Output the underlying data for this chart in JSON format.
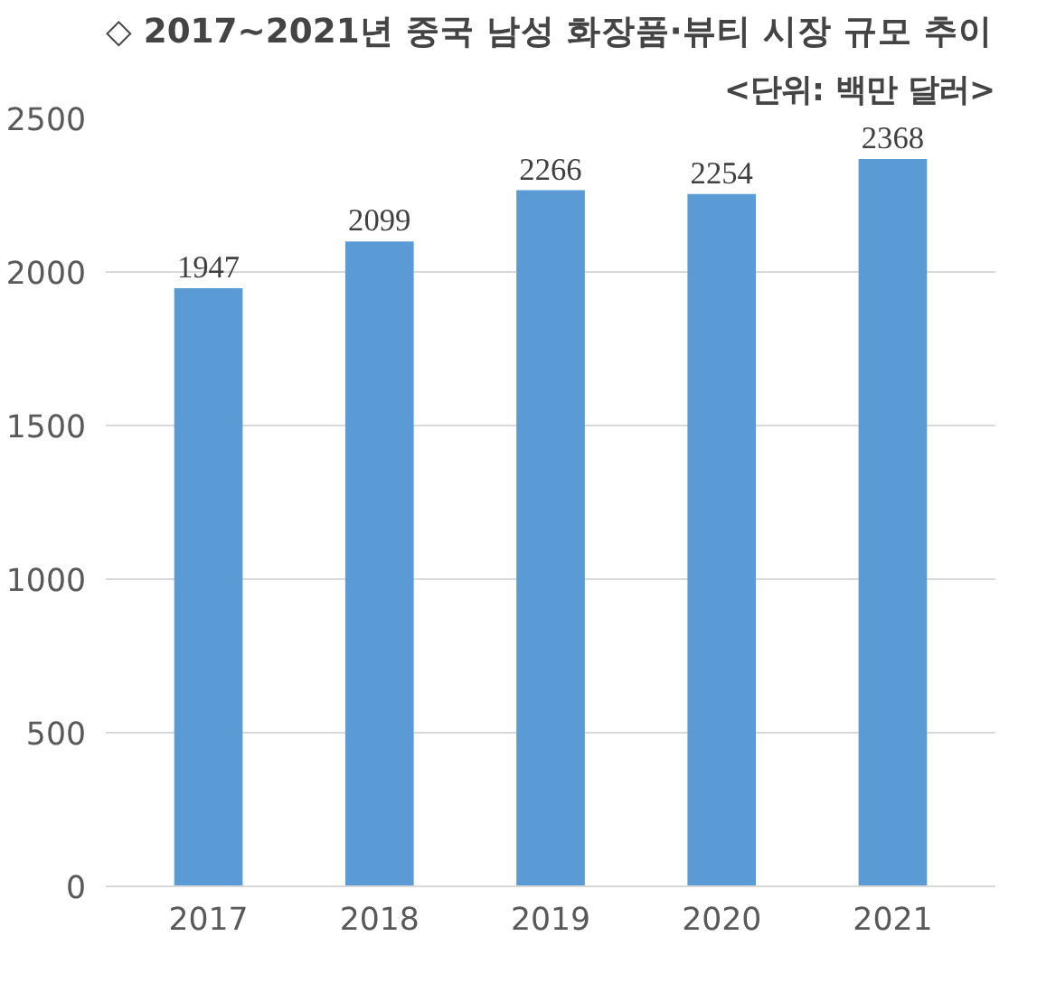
{
  "chart_data": {
    "type": "bar",
    "title": "◇ 2017~2021년 중국 남성 화장품·뷰티 시장 규모 추이",
    "subtitle": "<단위: 백만 달러>",
    "categories": [
      "2017",
      "2018",
      "2019",
      "2020",
      "2021"
    ],
    "values": [
      1947,
      2099,
      2266,
      2254,
      2368
    ],
    "color": "#5b9bd5",
    "ylim": [
      0,
      2500
    ],
    "yticks": [
      0,
      500,
      1000,
      1500,
      2000,
      2500
    ],
    "grid": "y",
    "data_labels": true
  }
}
